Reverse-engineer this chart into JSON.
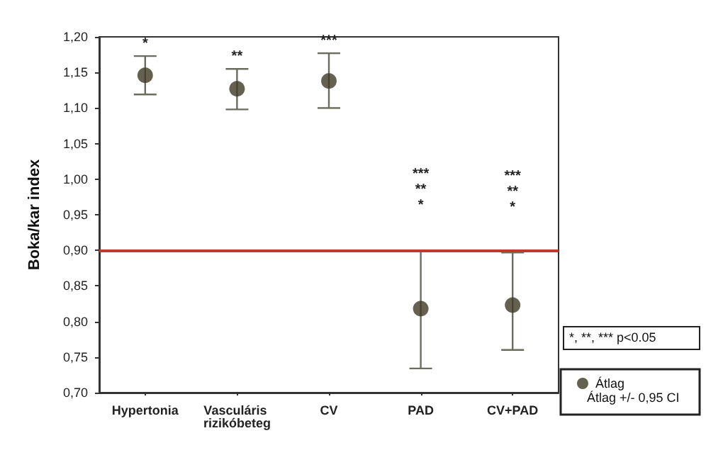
{
  "chart_data": {
    "type": "scatter",
    "ylabel": "Boka/kar index",
    "categories": [
      "Hypertonia",
      "Vasculáris rizikóbeteg",
      "CV",
      "PAD",
      "CV+PAD"
    ],
    "series": [
      {
        "name": "Átlag",
        "color": "#3d3a26",
        "values": [
          1.146,
          1.127,
          1.138,
          0.818,
          0.823
        ],
        "errors": [
          [
            1.119,
            1.173
          ],
          [
            1.098,
            1.155
          ],
          [
            1.1,
            1.177
          ],
          [
            0.734,
            0.9
          ],
          [
            0.76,
            0.897
          ]
        ]
      }
    ],
    "ylim": [
      0.7,
      1.2
    ],
    "yticks": [
      {
        "value": 0.7,
        "label": "0,70"
      },
      {
        "value": 0.75,
        "label": "0,75"
      },
      {
        "value": 0.8,
        "label": "0,80"
      },
      {
        "value": 0.85,
        "label": "0,85"
      },
      {
        "value": 0.9,
        "label": "0,90"
      },
      {
        "value": 0.95,
        "label": "0,95"
      },
      {
        "value": 1.0,
        "label": "1,00"
      },
      {
        "value": 1.05,
        "label": "1,05"
      },
      {
        "value": 1.1,
        "label": "1,10"
      },
      {
        "value": 1.15,
        "label": "1,15"
      },
      {
        "value": 1.2,
        "label": "1,20"
      }
    ],
    "ref_lines": [
      {
        "axis": "y",
        "value": 0.9,
        "color": "#c0392b"
      }
    ],
    "annotations": [
      "*",
      "**",
      "***",
      "***",
      "**",
      "*",
      "***",
      "**",
      "*",
      "*, **, *** p<0.05",
      "Átlag +/- 0,95 CI"
    ],
    "legend": "right",
    "marker": "circle",
    "grid": false
  }
}
